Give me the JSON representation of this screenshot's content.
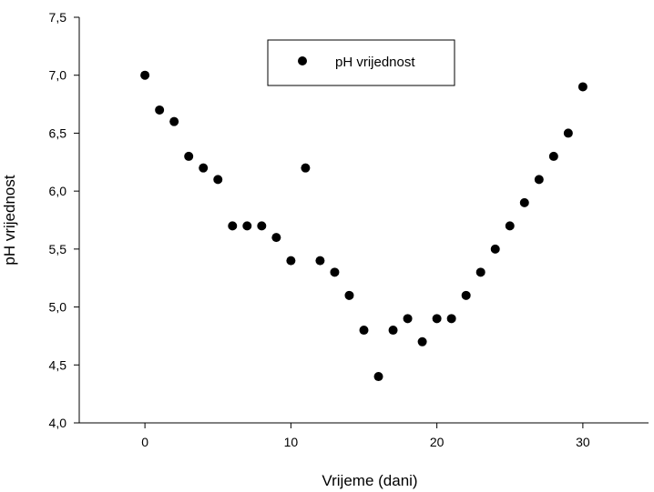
{
  "chart_data": {
    "type": "scatter",
    "xlabel": "Vrijeme (dani)",
    "ylabel": "pH vrijednost",
    "xlim": [
      -4.5,
      34.5
    ],
    "ylim": [
      4.0,
      7.5
    ],
    "xticks": [
      0,
      10,
      20,
      30
    ],
    "xtick_labels": [
      "0",
      "10",
      "20",
      "30"
    ],
    "yticks": [
      4.0,
      4.5,
      5.0,
      5.5,
      6.0,
      6.5,
      7.0,
      7.5
    ],
    "ytick_labels": [
      "4,0",
      "4,5",
      "5,0",
      "5,5",
      "6,0",
      "6,5",
      "7,0",
      "7,5"
    ],
    "grid": false,
    "legend_position": "top-center",
    "marker_color": "#000000",
    "series": [
      {
        "name": "pH vrijednost",
        "x": [
          0,
          1,
          2,
          3,
          4,
          5,
          6,
          7,
          8,
          9,
          10,
          11,
          12,
          13,
          14,
          15,
          16,
          17,
          18,
          19,
          20,
          21,
          22,
          23,
          24,
          25,
          26,
          27,
          28,
          29,
          30
        ],
        "y": [
          7.0,
          6.7,
          6.6,
          6.3,
          6.2,
          6.1,
          5.7,
          5.7,
          5.7,
          5.6,
          5.4,
          6.2,
          5.4,
          5.3,
          5.1,
          4.8,
          4.4,
          4.8,
          4.9,
          4.7,
          4.9,
          4.9,
          5.1,
          5.3,
          5.5,
          5.7,
          5.9,
          6.1,
          6.3,
          6.5,
          6.9
        ]
      }
    ]
  }
}
